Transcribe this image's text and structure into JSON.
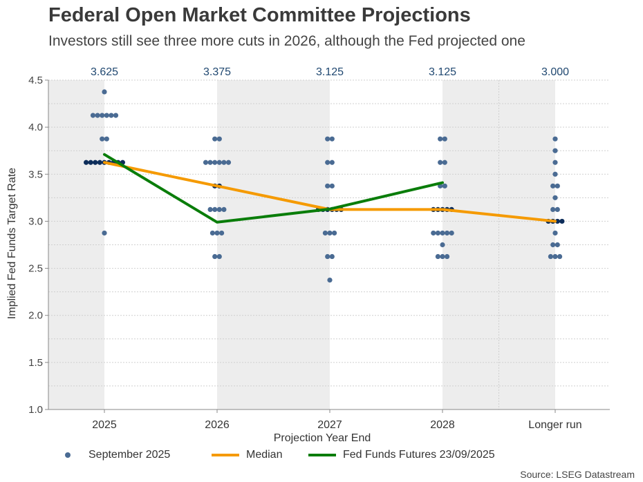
{
  "header": {
    "title": "Federal Open Market Committee Projections",
    "subtitle": "Investors still see three more cuts in 2026, although the Fed projected one"
  },
  "source": "Source: LSEG Datastream",
  "legend": {
    "dots_label": "September 2025",
    "median_label": "Median",
    "futures_label": "Fed Funds Futures 23/09/2025"
  },
  "colors": {
    "dots": "#4a6b93",
    "median_dots": "#0d2d5a",
    "median": "#f59a00",
    "futures": "#0a7d0a",
    "median_labels": "#1f4770",
    "band": "#ededed"
  },
  "chart_data": {
    "type": "scatter",
    "xlabel": "Projection Year End",
    "ylabel": "Implied Fed Funds Target Rate",
    "categories": [
      "2025",
      "2026",
      "2027",
      "2028",
      "Longer run"
    ],
    "ylim": [
      1.0,
      4.5
    ],
    "yticks": [
      "1.0",
      "1.5",
      "2.0",
      "2.5",
      "3.0",
      "3.5",
      "4.0",
      "4.5"
    ],
    "median_labels": [
      "3.625",
      "3.375",
      "3.125",
      "3.125",
      "3.000"
    ],
    "grid": true,
    "legend_position": "bottom",
    "dots": [
      [
        {
          "rate": 4.375,
          "count": 1
        },
        {
          "rate": 4.125,
          "count": 6
        },
        {
          "rate": 3.875,
          "count": 2
        },
        {
          "rate": 3.625,
          "count": 9
        },
        {
          "rate": 2.875,
          "count": 1
        }
      ],
      [
        {
          "rate": 3.875,
          "count": 2
        },
        {
          "rate": 3.625,
          "count": 6
        },
        {
          "rate": 3.375,
          "count": 2
        },
        {
          "rate": 3.125,
          "count": 4
        },
        {
          "rate": 2.875,
          "count": 3
        },
        {
          "rate": 2.625,
          "count": 2
        }
      ],
      [
        {
          "rate": 3.875,
          "count": 2
        },
        {
          "rate": 3.625,
          "count": 2
        },
        {
          "rate": 3.375,
          "count": 2
        },
        {
          "rate": 3.125,
          "count": 6
        },
        {
          "rate": 2.875,
          "count": 3
        },
        {
          "rate": 2.625,
          "count": 2
        },
        {
          "rate": 2.375,
          "count": 1
        }
      ],
      [
        {
          "rate": 3.875,
          "count": 2
        },
        {
          "rate": 3.625,
          "count": 2
        },
        {
          "rate": 3.375,
          "count": 2
        },
        {
          "rate": 3.125,
          "count": 5
        },
        {
          "rate": 2.875,
          "count": 5
        },
        {
          "rate": 2.75,
          "count": 1
        },
        {
          "rate": 2.625,
          "count": 3
        }
      ],
      [
        {
          "rate": 3.875,
          "count": 1
        },
        {
          "rate": 3.75,
          "count": 1
        },
        {
          "rate": 3.625,
          "count": 1
        },
        {
          "rate": 3.5,
          "count": 1
        },
        {
          "rate": 3.375,
          "count": 2
        },
        {
          "rate": 3.25,
          "count": 1
        },
        {
          "rate": 3.125,
          "count": 2
        },
        {
          "rate": 3.0,
          "count": 4
        },
        {
          "rate": 2.875,
          "count": 1
        },
        {
          "rate": 2.75,
          "count": 2
        },
        {
          "rate": 2.625,
          "count": 3
        }
      ]
    ],
    "series": [
      {
        "name": "Median",
        "values": [
          3.625,
          3.375,
          3.125,
          3.125,
          3.0
        ]
      },
      {
        "name": "Fed Funds Futures 23/09/2025",
        "values": [
          3.71,
          2.99,
          3.13,
          3.41,
          null
        ]
      }
    ]
  }
}
